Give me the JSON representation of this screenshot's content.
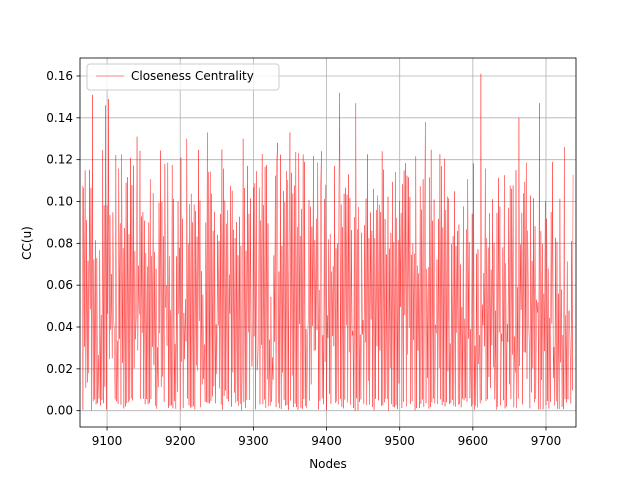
{
  "chart_data": {
    "type": "line",
    "title": "",
    "xlabel": "Nodes",
    "ylabel": "CC(u)",
    "xlim": [
      9063,
      9741
    ],
    "ylim": [
      -0.0078,
      0.1686
    ],
    "x_ticks": [
      9100,
      9200,
      9300,
      9400,
      9500,
      9600,
      9700
    ],
    "y_ticks": [
      0.0,
      0.02,
      0.04,
      0.06,
      0.08,
      0.1,
      0.12,
      0.14,
      0.16
    ],
    "x_tick_labels": [
      "9100",
      "9200",
      "9300",
      "9400",
      "9500",
      "9600",
      "9700"
    ],
    "y_tick_labels": [
      "0.00",
      "0.02",
      "0.04",
      "0.06",
      "0.08",
      "0.10",
      "0.12",
      "0.14",
      "0.16"
    ],
    "grid": true,
    "legend_position": "upper-left",
    "series": [
      {
        "name": "Closeness Centrality",
        "color": "#ff0000",
        "x_start": 9066,
        "x_end": 9737,
        "peaks": [
          {
            "x": 9080,
            "y": 0.151
          },
          {
            "x": 9098,
            "y": 0.146
          },
          {
            "x": 9102,
            "y": 0.149
          },
          {
            "x": 9141,
            "y": 0.131
          },
          {
            "x": 9209,
            "y": 0.13
          },
          {
            "x": 9237,
            "y": 0.133
          },
          {
            "x": 9286,
            "y": 0.13
          },
          {
            "x": 9333,
            "y": 0.128
          },
          {
            "x": 9350,
            "y": 0.133
          },
          {
            "x": 9393,
            "y": 0.124
          },
          {
            "x": 9418,
            "y": 0.152
          },
          {
            "x": 9440,
            "y": 0.147
          },
          {
            "x": 9476,
            "y": 0.124
          },
          {
            "x": 9535,
            "y": 0.138
          },
          {
            "x": 9611,
            "y": 0.161
          },
          {
            "x": 9663,
            "y": 0.14
          },
          {
            "x": 9691,
            "y": 0.147
          },
          {
            "x": 9725,
            "y": 0.126
          }
        ]
      }
    ]
  }
}
